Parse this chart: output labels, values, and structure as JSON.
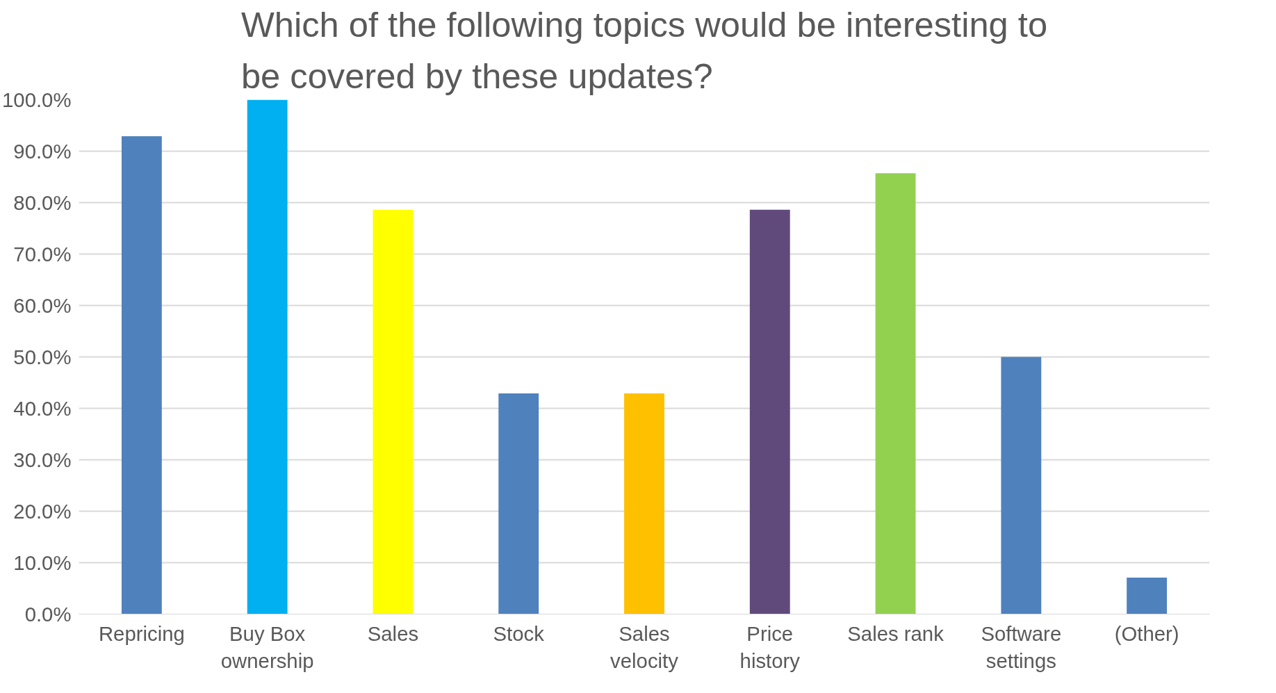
{
  "chart_data": {
    "type": "bar",
    "title": "Which of the following topics would be interesting to be covered by these updates?",
    "categories": [
      "Repricing",
      "Buy Box ownership",
      "Sales",
      "Stock",
      "Sales velocity",
      "Price history",
      "Sales rank",
      "Software settings",
      "(Other)"
    ],
    "values": [
      92.9,
      100,
      78.6,
      42.9,
      42.9,
      78.6,
      85.7,
      50,
      7.1
    ],
    "colors": [
      "#4f81bd",
      "#00b0f0",
      "#ffff00",
      "#4f81bd",
      "#ffc000",
      "#604a7b",
      "#92d050",
      "#4f81bd",
      "#4f81bd"
    ],
    "ylim": [
      0,
      100
    ],
    "yticks": [
      {
        "value": 0,
        "label": "0.0%"
      },
      {
        "value": 10,
        "label": "10.0%"
      },
      {
        "value": 20,
        "label": "20.0%"
      },
      {
        "value": 30,
        "label": "30.0%"
      },
      {
        "value": 40,
        "label": "40.0%"
      },
      {
        "value": 50,
        "label": "50.0%"
      },
      {
        "value": 60,
        "label": "60.0%"
      },
      {
        "value": 70,
        "label": "70.0%"
      },
      {
        "value": 80,
        "label": "80.0%"
      },
      {
        "value": 90,
        "label": "90.0%"
      },
      {
        "value": 100,
        "label": "100.0%"
      }
    ],
    "grid": "y"
  }
}
